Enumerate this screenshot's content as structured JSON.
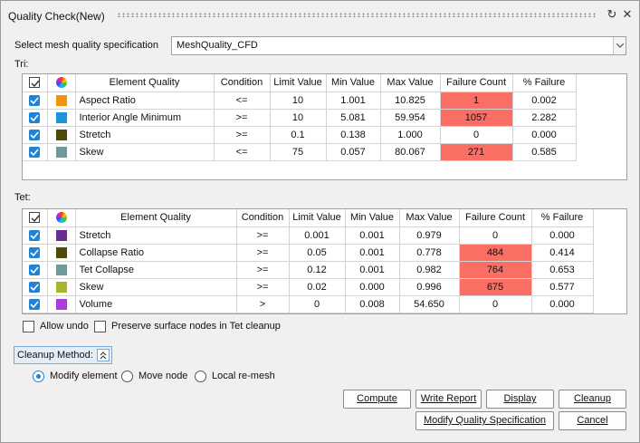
{
  "title": "Quality Check(New)",
  "spec": {
    "label": "Select mesh quality specification",
    "value": "MeshQuality_CFD"
  },
  "tri": {
    "label": "Tri:",
    "headers": [
      "Element Quality",
      "Condition",
      "Limit Value",
      "Min Value",
      "Max Value",
      "Failure Count",
      "% Failure"
    ],
    "rows": [
      {
        "checked": true,
        "color": "#f3920c",
        "name": "Aspect Ratio",
        "condition": "<=",
        "limit": "10",
        "min": "1.001",
        "max": "10.825",
        "failure": "1",
        "pct": "0.002",
        "failed": true
      },
      {
        "checked": true,
        "color": "#1a95dc",
        "name": "Interior Angle Minimum",
        "condition": ">=",
        "limit": "10",
        "min": "5.081",
        "max": "59.954",
        "failure": "1057",
        "pct": "2.282",
        "failed": true
      },
      {
        "checked": true,
        "color": "#4f4a0a",
        "name": "Stretch",
        "condition": ">=",
        "limit": "0.1",
        "min": "0.138",
        "max": "1.000",
        "failure": "0",
        "pct": "0.000",
        "failed": false
      },
      {
        "checked": true,
        "color": "#6e9a99",
        "name": "Skew",
        "condition": "<=",
        "limit": "75",
        "min": "0.057",
        "max": "80.067",
        "failure": "271",
        "pct": "0.585",
        "failed": true
      }
    ]
  },
  "tet": {
    "label": "Tet:",
    "headers": [
      "Element Quality",
      "Condition",
      "Limit Value",
      "Min Value",
      "Max Value",
      "Failure Count",
      "% Failure"
    ],
    "rows": [
      {
        "checked": true,
        "color": "#6a2e91",
        "name": "Stretch",
        "condition": ">=",
        "limit": "0.001",
        "min": "0.001",
        "max": "0.979",
        "failure": "0",
        "pct": "0.000",
        "failed": false
      },
      {
        "checked": true,
        "color": "#4f4a0a",
        "name": "Collapse Ratio",
        "condition": ">=",
        "limit": "0.05",
        "min": "0.001",
        "max": "0.778",
        "failure": "484",
        "pct": "0.414",
        "failed": true
      },
      {
        "checked": true,
        "color": "#6e9a99",
        "name": "Tet Collapse",
        "condition": ">=",
        "limit": "0.12",
        "min": "0.001",
        "max": "0.982",
        "failure": "764",
        "pct": "0.653",
        "failed": true
      },
      {
        "checked": true,
        "color": "#a8b42a",
        "name": "Skew",
        "condition": ">=",
        "limit": "0.02",
        "min": "0.000",
        "max": "0.996",
        "failure": "675",
        "pct": "0.577",
        "failed": true
      },
      {
        "checked": true,
        "color": "#a93be0",
        "name": "Volume",
        "condition": ">",
        "limit": "0",
        "min": "0.008",
        "max": "54.650",
        "failure": "0",
        "pct": "0.000",
        "failed": false
      }
    ]
  },
  "options": {
    "allow_undo": "Allow undo",
    "preserve": "Preserve surface nodes in Tet cleanup"
  },
  "cleanup": {
    "label": "Cleanup Method:",
    "methods": [
      "Modify element",
      "Move node",
      "Local re-mesh"
    ],
    "selected": "Modify element"
  },
  "buttons": {
    "compute": "Compute",
    "write_report": "Write Report",
    "display": "Display",
    "cleanup": "Cleanup",
    "modify_spec": "Modify Quality Specification",
    "cancel": "Cancel"
  },
  "icons": [
    "refresh-icon",
    "close-icon",
    "select-all-checkbox-icon",
    "color-wheel-icon",
    "chevron-down-icon",
    "collapse-up-icon"
  ]
}
